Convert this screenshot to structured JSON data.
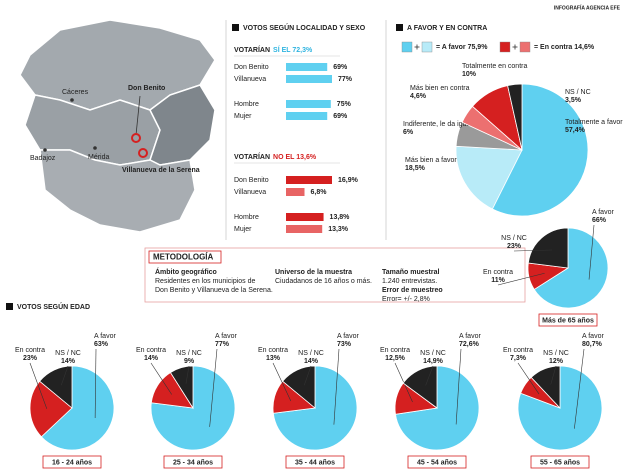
{
  "credit": "INFOGRAFÍA AGENCIA EFE",
  "map": {
    "places": [
      "Cáceres",
      "Don Benito",
      "Mérida",
      "Badajoz",
      "Villanueva de la Serena"
    ]
  },
  "methodology": {
    "title": "METODOLOGÍA",
    "columns": [
      {
        "heading": "Ámbito geográfico",
        "lines": [
          "Residentes en los municipios de",
          "Don Benito y Villanueva de la Serena."
        ]
      },
      {
        "heading": "Universo de la muestra",
        "lines": [
          "Ciudadanos de 16 años o más."
        ]
      },
      {
        "heading": "Tamaño muestral",
        "lines": [
          "1.240 entrevistas."
        ]
      },
      {
        "heading": "Error de muestreo",
        "lines": [
          "Error= +/- 2,8%"
        ]
      }
    ]
  },
  "age_section_title": "VOTOS SEGÚN EDAD",
  "chart_data": [
    {
      "type": "bar",
      "title": "VOTOS SEGÚN LOCALIDAD Y SEXO",
      "subtitle": "VOTARÍAN",
      "highlight": "SÍ EL 72,3%",
      "highlight_color": "#2fb4e0",
      "categories": [
        "Don Benito",
        "Villanueva",
        "Hombre",
        "Mujer"
      ],
      "values": [
        69,
        77,
        75,
        69
      ],
      "value_labels": [
        "69%",
        "77%",
        "75%",
        "69%"
      ],
      "colors": [
        "#5fd0f0",
        "#5fd0f0",
        "#5fd0f0",
        "#5fd0f0"
      ]
    },
    {
      "type": "bar",
      "subtitle": "VOTARÍAN",
      "highlight": "NO EL 13,6%",
      "highlight_color": "#d52020",
      "categories": [
        "Don Benito",
        "Villanueva",
        "Hombre",
        "Mujer"
      ],
      "values": [
        16.9,
        6.8,
        13.8,
        13.3
      ],
      "value_labels": [
        "16,9%",
        "6,8%",
        "13,8%",
        "13,3%"
      ],
      "colors": [
        "#d52020",
        "#e86464",
        "#d52020",
        "#e86464"
      ]
    },
    {
      "type": "pie",
      "title": "A FAVOR Y EN CONTRA",
      "categories": [
        "Totalmente a favor",
        "Más bien a favor",
        "Indiferente, le da igual",
        "Más bien en contra",
        "Totalmente en contra",
        "NS / NC"
      ],
      "values": [
        57.4,
        18.5,
        6,
        4.6,
        10,
        3.5
      ],
      "value_labels": [
        "57,4%",
        "18,5%",
        "6%",
        "4,6%",
        "10%",
        "3,5%"
      ],
      "colors": [
        "#5fd0f0",
        "#b8ebf8",
        "#9a9a9a",
        "#ec7070",
        "#d52020",
        "#222222"
      ],
      "legend": [
        {
          "label": "= A favor 75,9%",
          "colors": [
            "#5fd0f0",
            "#b8ebf8"
          ]
        },
        {
          "label": "= En contra 14,6%",
          "colors": [
            "#d52020",
            "#ec7070"
          ]
        }
      ]
    },
    {
      "type": "pie",
      "title": "Más de 65 años",
      "categories": [
        "A favor",
        "En contra",
        "NS / NC"
      ],
      "values": [
        66,
        11,
        23
      ],
      "value_labels": [
        "66%",
        "11%",
        "23%"
      ],
      "colors": [
        "#5fd0f0",
        "#d52020",
        "#222222"
      ]
    },
    {
      "type": "pie",
      "title": "16 - 24 años",
      "categories": [
        "A favor",
        "En contra",
        "NS / NC"
      ],
      "values": [
        63,
        23,
        14
      ],
      "value_labels": [
        "63%",
        "23%",
        "14%"
      ],
      "colors": [
        "#5fd0f0",
        "#d52020",
        "#222222"
      ]
    },
    {
      "type": "pie",
      "title": "25 - 34 años",
      "categories": [
        "A favor",
        "En contra",
        "NS / NC"
      ],
      "values": [
        77,
        14,
        9
      ],
      "value_labels": [
        "77%",
        "14%",
        "9%"
      ],
      "colors": [
        "#5fd0f0",
        "#d52020",
        "#222222"
      ]
    },
    {
      "type": "pie",
      "title": "35 - 44 años",
      "categories": [
        "A favor",
        "En contra",
        "NS / NC"
      ],
      "values": [
        73,
        13,
        14
      ],
      "value_labels": [
        "73%",
        "13%",
        "14%"
      ],
      "colors": [
        "#5fd0f0",
        "#d52020",
        "#222222"
      ]
    },
    {
      "type": "pie",
      "title": "45 - 54 años",
      "categories": [
        "A favor",
        "En contra",
        "NS / NC"
      ],
      "values": [
        72.6,
        12.5,
        14.9
      ],
      "value_labels": [
        "72,6%",
        "12,5%",
        "14,9%"
      ],
      "colors": [
        "#5fd0f0",
        "#d52020",
        "#222222"
      ]
    },
    {
      "type": "pie",
      "title": "55 - 65 años",
      "categories": [
        "A favor",
        "En contra",
        "NS / NC"
      ],
      "values": [
        80.7,
        7.3,
        12
      ],
      "value_labels": [
        "80,7%",
        "7,3%",
        "12%"
      ],
      "colors": [
        "#5fd0f0",
        "#d52020",
        "#222222"
      ]
    }
  ]
}
